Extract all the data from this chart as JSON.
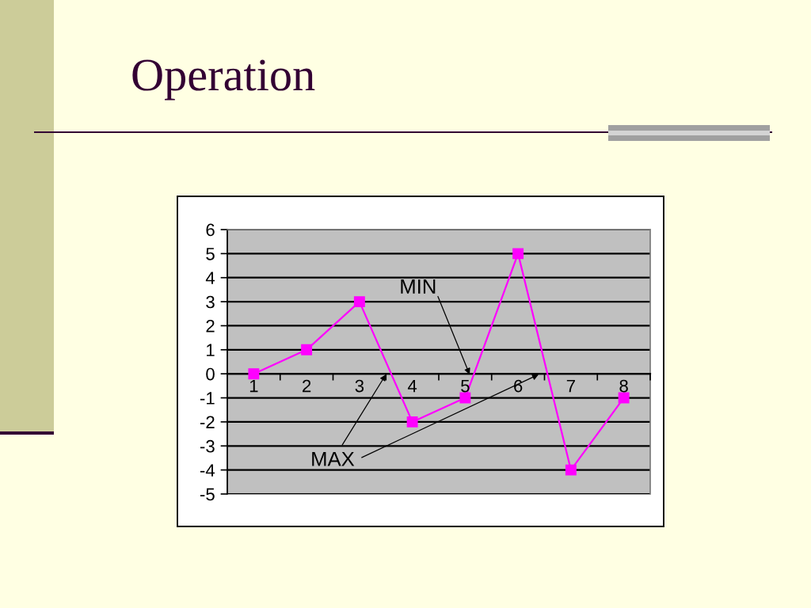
{
  "chart_data": {
    "type": "line",
    "title": "Operation",
    "categories": [
      "1",
      "2",
      "3",
      "4",
      "5",
      "6",
      "7",
      "8"
    ],
    "series": [
      {
        "color": "#ff00ff",
        "values": [
          0,
          1,
          3,
          -2,
          -1,
          5,
          -4,
          -1
        ]
      }
    ],
    "ylim": [
      -5,
      6
    ],
    "yticks": [
      -5,
      -4,
      -3,
      -2,
      -1,
      0,
      1,
      2,
      3,
      4,
      5,
      6
    ],
    "grid": "y",
    "marker": "square",
    "line_style": "solid",
    "annotations": [
      "MIN",
      "MAX"
    ]
  }
}
